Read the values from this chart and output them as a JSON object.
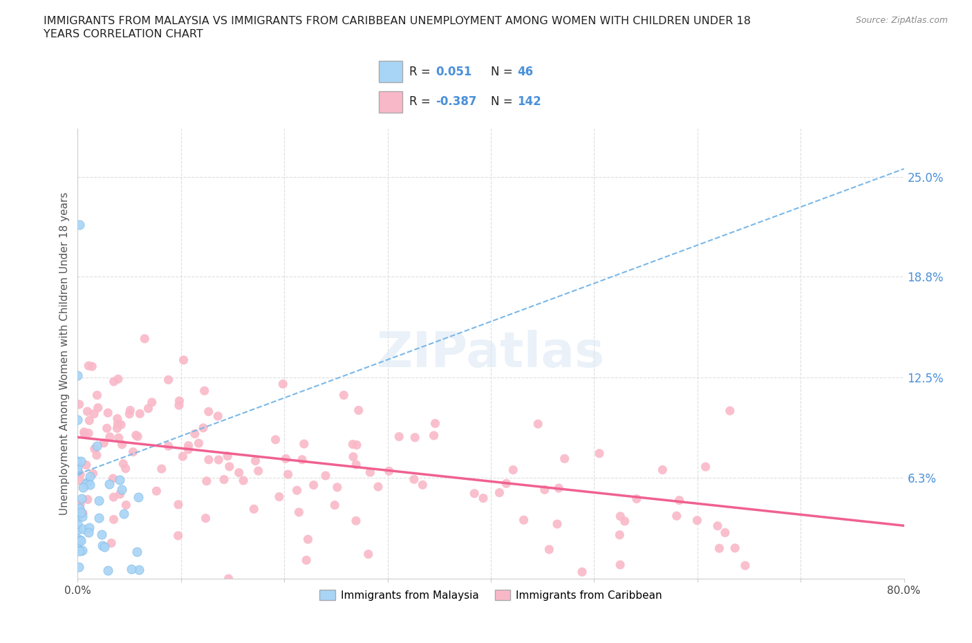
{
  "title_line1": "IMMIGRANTS FROM MALAYSIA VS IMMIGRANTS FROM CARIBBEAN UNEMPLOYMENT AMONG WOMEN WITH CHILDREN UNDER 18",
  "title_line2": "YEARS CORRELATION CHART",
  "source": "Source: ZipAtlas.com",
  "ylabel": "Unemployment Among Women with Children Under 18 years",
  "xlim": [
    0.0,
    0.8
  ],
  "ylim": [
    0.0,
    0.28
  ],
  "right_yticks": [
    0.063,
    0.125,
    0.188,
    0.25
  ],
  "right_yticklabels": [
    "6.3%",
    "12.5%",
    "18.8%",
    "25.0%"
  ],
  "malaysia_color": "#a8d4f5",
  "caribbean_color": "#f9b8c8",
  "malaysia_trendline_color": "#7ab8e8",
  "caribbean_trendline_color": "#f06090",
  "malaysia_R": 0.051,
  "malaysia_N": 46,
  "caribbean_R": -0.387,
  "caribbean_N": 142,
  "legend_label_malaysia": "Immigrants from Malaysia",
  "legend_label_caribbean": "Immigrants from Caribbean",
  "watermark": "ZIPatlas",
  "background_color": "#ffffff",
  "grid_color": "#dddddd",
  "mal_trend_x0": 0.0,
  "mal_trend_y0": 0.065,
  "mal_trend_x1": 0.8,
  "mal_trend_y1": 0.255,
  "car_trend_x0": 0.0,
  "car_trend_y0": 0.088,
  "car_trend_x1": 0.8,
  "car_trend_y1": 0.033
}
